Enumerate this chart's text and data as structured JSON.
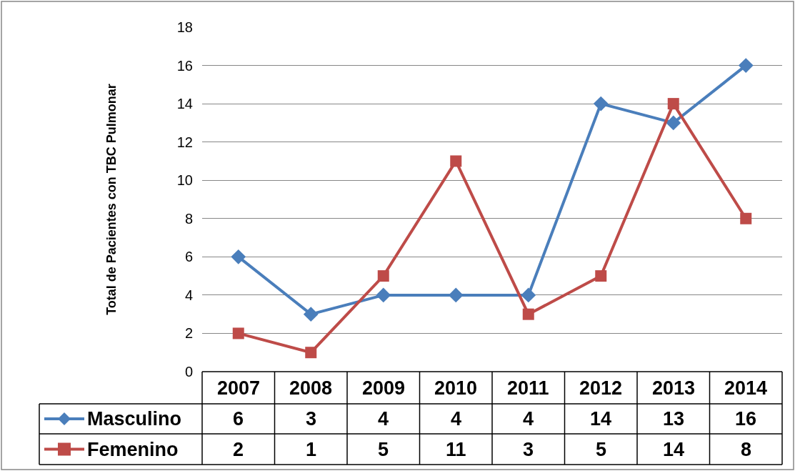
{
  "chart_data": {
    "type": "line",
    "ylabel": "Total de Pacientes con TBC Pulmonar",
    "categories": [
      "2007",
      "2008",
      "2009",
      "2010",
      "2011",
      "2012",
      "2013",
      "2014"
    ],
    "series": [
      {
        "name": "Masculino",
        "color": "#4a7ebb",
        "marker": "diamond",
        "values": [
          6,
          3,
          4,
          4,
          4,
          14,
          13,
          16
        ]
      },
      {
        "name": "Femenino",
        "color": "#be4b48",
        "marker": "square",
        "values": [
          2,
          1,
          5,
          11,
          3,
          5,
          14,
          8
        ]
      }
    ],
    "ylim": [
      0,
      18
    ],
    "yticks": [
      0,
      2,
      4,
      6,
      8,
      10,
      12,
      14,
      16,
      18
    ],
    "grid": "y",
    "data_labels": true,
    "legend": "bottom left"
  }
}
